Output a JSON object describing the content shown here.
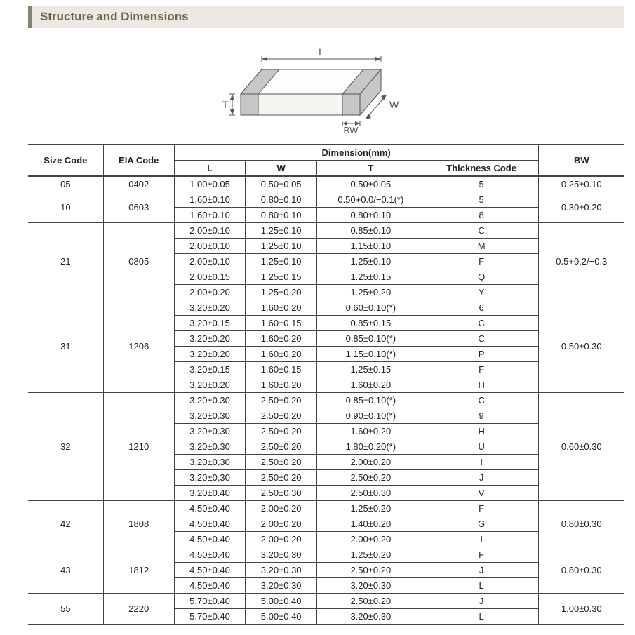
{
  "title": "Structure and Dimensions",
  "diagram": {
    "labels": {
      "L": "L",
      "W": "W",
      "T": "T",
      "BW": "BW"
    },
    "stroke": "#555555",
    "fill_top": "#fdfdfb",
    "fill_side": "#f0eee8",
    "fill_front": "#f7f5ef",
    "fill_band": "#c7c7c7"
  },
  "table": {
    "header": {
      "size_code": "Size Code",
      "eia_code": "EIA Code",
      "dimension": "Dimension(mm)",
      "L": "L",
      "W": "W",
      "T": "T",
      "thickness_code": "Thickness  Code",
      "BW": "BW"
    },
    "groups": [
      {
        "size": "05",
        "eia": "0402",
        "rows": [
          {
            "L": "1.00±0.05",
            "W": "0.50±0.05",
            "T": "0.50±0.05",
            "TC": "5"
          }
        ],
        "BW": "0.25±0.10"
      },
      {
        "size": "10",
        "eia": "0603",
        "rows": [
          {
            "L": "1.60±0.10",
            "W": "0.80±0.10",
            "T": "0.50+0.0/−0.1(*)",
            "TC": "5"
          },
          {
            "L": "1.60±0.10",
            "W": "0.80±0.10",
            "T": "0.80±0.10",
            "TC": "8"
          }
        ],
        "BW": "0.30±0.20"
      },
      {
        "size": "21",
        "eia": "0805",
        "rows": [
          {
            "L": "2.00±0.10",
            "W": "1.25±0.10",
            "T": "0.85±0.10",
            "TC": "C"
          },
          {
            "L": "2.00±0.10",
            "W": "1.25±0.10",
            "T": "1.15±0.10",
            "TC": "M"
          },
          {
            "L": "2.00±0.10",
            "W": "1.25±0.10",
            "T": "1.25±0.10",
            "TC": "F"
          },
          {
            "L": "2.00±0.15",
            "W": "1.25±0.15",
            "T": "1.25±0.15",
            "TC": "Q"
          },
          {
            "L": "2.00±0.20",
            "W": "1.25±0.20",
            "T": "1.25±0.20",
            "TC": "Y"
          }
        ],
        "BW": "0.5+0.2/−0.3"
      },
      {
        "size": "31",
        "eia": "1206",
        "rows": [
          {
            "L": "3.20±0.20",
            "W": "1.60±0.20",
            "T": "0.60±0.10(*)",
            "TC": "6"
          },
          {
            "L": "3.20±0.15",
            "W": "1.60±0.15",
            "T": "0.85±0.15",
            "TC": "C"
          },
          {
            "L": "3.20±0.20",
            "W": "1.60±0.20",
            "T": "0.85±0.10(*)",
            "TC": "C"
          },
          {
            "L": "3.20±0.20",
            "W": "1.60±0.20",
            "T": "1.15±0.10(*)",
            "TC": "P"
          },
          {
            "L": "3.20±0.15",
            "W": "1.60±0.15",
            "T": "1.25±0.15",
            "TC": "F"
          },
          {
            "L": "3.20±0.20",
            "W": "1.60±0.20",
            "T": "1.60±0.20",
            "TC": "H"
          }
        ],
        "BW": "0.50±0.30"
      },
      {
        "size": "32",
        "eia": "1210",
        "rows": [
          {
            "L": "3.20±0.30",
            "W": "2.50±0.20",
            "T": "0.85±0.10(*)",
            "TC": "C"
          },
          {
            "L": "3.20±0.30",
            "W": "2.50±0.20",
            "T": "0.90±0.10(*)",
            "TC": "9"
          },
          {
            "L": "3.20±0.30",
            "W": "2.50±0.20",
            "T": "1.60±0.20",
            "TC": "H"
          },
          {
            "L": "3.20±0.30",
            "W": "2.50±0.20",
            "T": "1.80±0.20(*)",
            "TC": "U"
          },
          {
            "L": "3.20±0.30",
            "W": "2.50±0.20",
            "T": "2.00±0.20",
            "TC": "I"
          },
          {
            "L": "3.20±0.30",
            "W": "2.50±0.20",
            "T": "2.50±0.20",
            "TC": "J"
          },
          {
            "L": "3.20±0.40",
            "W": "2.50±0.30",
            "T": "2.50±0.30",
            "TC": "V"
          }
        ],
        "BW": "0.60±0.30"
      },
      {
        "size": "42",
        "eia": "1808",
        "rows": [
          {
            "L": "4.50±0.40",
            "W": "2.00±0.20",
            "T": "1.25±0.20",
            "TC": "F"
          },
          {
            "L": "4.50±0.40",
            "W": "2.00±0.20",
            "T": "1.40±0.20",
            "TC": "G"
          },
          {
            "L": "4.50±0.40",
            "W": "2.00±0.20",
            "T": "2.00±0.20",
            "TC": "I"
          }
        ],
        "BW": "0.80±0.30"
      },
      {
        "size": "43",
        "eia": "1812",
        "rows": [
          {
            "L": "4.50±0.40",
            "W": "3.20±0.30",
            "T": "1.25±0.20",
            "TC": "F"
          },
          {
            "L": "4.50±0.40",
            "W": "3.20±0.30",
            "T": "2.50±0.20",
            "TC": "J"
          },
          {
            "L": "4.50±0.40",
            "W": "3.20±0.30",
            "T": "3.20±0.30",
            "TC": "L"
          }
        ],
        "BW": "0.80±0.30"
      },
      {
        "size": "55",
        "eia": "2220",
        "rows": [
          {
            "L": "5.70±0.40",
            "W": "5.00±0.40",
            "T": "2.50±0.20",
            "TC": "J"
          },
          {
            "L": "5.70±0.40",
            "W": "5.00±0.40",
            "T": "3.20±0.30",
            "TC": "L"
          }
        ],
        "BW": "1.00±0.30"
      }
    ]
  }
}
